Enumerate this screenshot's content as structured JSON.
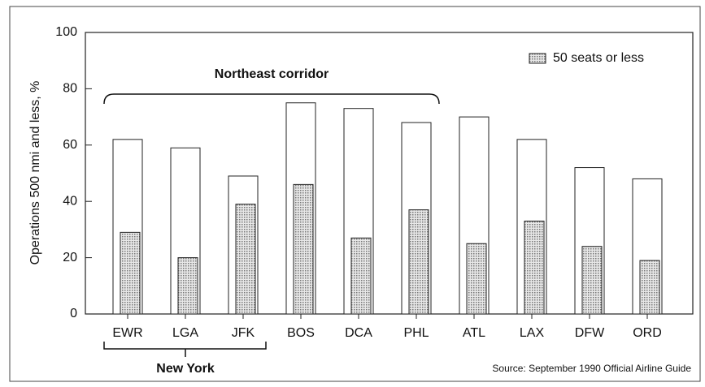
{
  "chart_data": {
    "type": "bar",
    "ylabel": "Operations 500 nmi and less, %",
    "categories": [
      "EWR",
      "LGA",
      "JFK",
      "BOS",
      "DCA",
      "PHL",
      "ATL",
      "LAX",
      "DFW",
      "ORD"
    ],
    "series": [
      {
        "color": "#ffffff",
        "values": [
          62,
          59,
          49,
          75,
          73,
          68,
          70,
          62,
          52,
          48
        ]
      },
      {
        "name": "50 seats or less",
        "color": "#b8b8b8",
        "values": [
          29,
          20,
          39,
          46,
          27,
          37,
          25,
          33,
          24,
          19
        ]
      }
    ],
    "ylim": [
      0,
      100
    ],
    "yticks": [
      0,
      20,
      40,
      60,
      80,
      100
    ],
    "legend": "upper right",
    "annotations": [
      "Northeast corridor",
      "New York"
    ],
    "source": "Source: September 1990 Official Airline Guide"
  }
}
